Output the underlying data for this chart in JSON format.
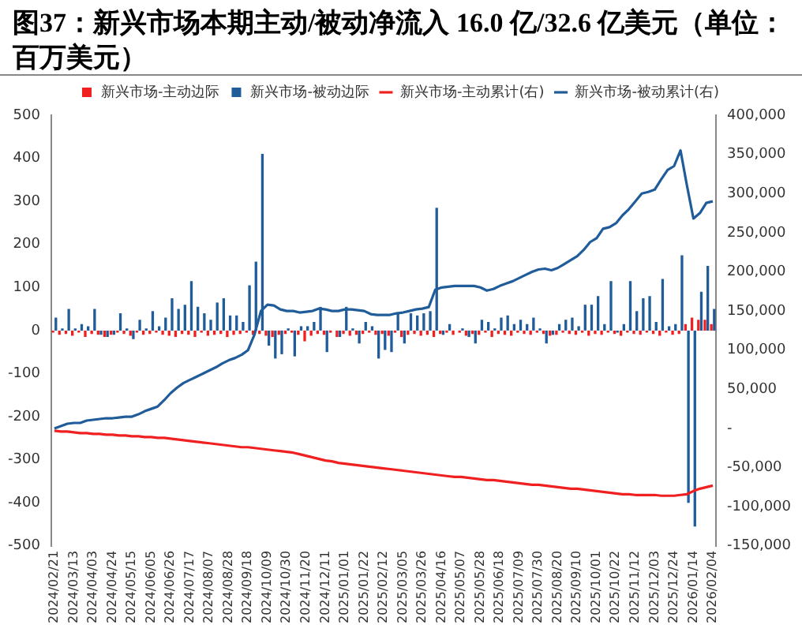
{
  "chart_data": {
    "type": "bar",
    "title": "图37：新兴市场本期主动/被动净流入 16.0 亿/32.6 亿美元（单位：百万美元）",
    "categories": [
      "2024/02/21",
      null,
      null,
      "2024/03/13",
      null,
      null,
      "2024/04/03",
      null,
      null,
      "2024/04/24",
      null,
      null,
      "2024/05/15",
      null,
      null,
      "2024/06/05",
      null,
      null,
      "2024/06/26",
      null,
      null,
      "2024/07/17",
      null,
      null,
      "2024/08/07",
      null,
      null,
      "2024/08/28",
      null,
      null,
      "2024/09/18",
      null,
      null,
      "2024/10/09",
      null,
      null,
      "2024/10/30",
      null,
      null,
      "2024/11/20",
      null,
      null,
      "2024/12/11",
      null,
      null,
      "2025/01/01",
      null,
      null,
      "2025/01/22",
      null,
      null,
      "2025/02/12",
      null,
      null,
      "2025/03/05",
      null,
      null,
      "2025/03/26",
      null,
      null,
      "2025/04/16",
      null,
      null,
      "2025/05/07",
      null,
      null,
      "2025/05/28",
      null,
      null,
      "2025/06/18",
      null,
      null,
      "2025/07/09",
      null,
      null,
      "2025/07/30",
      null,
      null,
      "2025/08/20",
      null,
      null,
      "2025/09/10",
      null,
      null,
      "2025/10/01",
      null,
      null,
      "2025/10/22",
      null,
      null,
      "2025/11/12",
      null,
      null,
      "2025/12/03",
      null,
      null,
      "2025/12/24",
      null,
      null,
      "2026/01/14",
      null,
      null,
      "2026/02/04"
    ],
    "series": [
      {
        "name": "新兴市场-主动边际",
        "color": "#f02020",
        "values": [
          -5,
          -10,
          -8,
          -12,
          -5,
          -15,
          -8,
          -10,
          -15,
          -10,
          -5,
          -8,
          -12,
          -5,
          -10,
          -8,
          -5,
          -10,
          -12,
          -15,
          -8,
          -10,
          -15,
          -5,
          -12,
          -10,
          -8,
          -15,
          -10,
          -8,
          -5,
          -10,
          -8,
          -12,
          -15,
          -10,
          -8,
          -5,
          -10,
          -25,
          -12,
          -8,
          -10,
          -5,
          -15,
          -8,
          -12,
          -10,
          -8,
          -5,
          -10,
          -8,
          -12,
          -5,
          -15,
          -10,
          -8,
          -12,
          -10,
          -15,
          -8,
          -5,
          -10,
          -5,
          -12,
          -8,
          -10,
          -5,
          -15,
          -8,
          -10,
          -12,
          -5,
          -8,
          -10,
          -5,
          -8,
          -12,
          -10,
          -5,
          -8,
          -10,
          -5,
          -12,
          -8,
          -10,
          -5,
          -8,
          -12,
          -5,
          -8,
          -10,
          -5,
          -8,
          -12,
          -5,
          -10,
          -8,
          15,
          30,
          25,
          25,
          15
        ]
      },
      {
        "name": "新兴市场-被动边际",
        "color": "#1f5c99",
        "values": [
          30,
          5,
          50,
          5,
          15,
          10,
          50,
          -10,
          -15,
          -10,
          40,
          5,
          -20,
          25,
          5,
          45,
          10,
          30,
          75,
          50,
          60,
          115,
          55,
          40,
          25,
          65,
          75,
          35,
          35,
          20,
          105,
          160,
          410,
          -35,
          -65,
          -55,
          5,
          -60,
          10,
          10,
          20,
          55,
          -50,
          0,
          -15,
          55,
          5,
          -30,
          20,
          10,
          -65,
          -45,
          -50,
          40,
          -30,
          40,
          35,
          40,
          45,
          285,
          -10,
          15,
          0,
          5,
          -15,
          -30,
          25,
          20,
          5,
          30,
          35,
          15,
          25,
          15,
          30,
          5,
          -30,
          -10,
          15,
          25,
          30,
          10,
          60,
          60,
          80,
          15,
          115,
          -5,
          15,
          115,
          45,
          75,
          80,
          20,
          120,
          10,
          15,
          175,
          -400,
          -455,
          90,
          150,
          50
        ]
      },
      {
        "name": "新兴市场-主动累计(右)",
        "type": "line",
        "axis": "y2",
        "color": "#f02020",
        "values": [
          -3000,
          -4000,
          -4000,
          -5000,
          -6000,
          -6000,
          -7000,
          -7000,
          -8000,
          -8000,
          -9000,
          -9000,
          -10000,
          -10000,
          -11000,
          -11000,
          -12000,
          -12000,
          -13000,
          -14000,
          -15000,
          -16000,
          -17000,
          -18000,
          -19000,
          -20000,
          -21000,
          -22000,
          -23000,
          -24000,
          -24000,
          -25000,
          -26000,
          -27000,
          -28000,
          -29000,
          -30000,
          -31000,
          -33000,
          -35000,
          -37000,
          -39000,
          -41000,
          -42000,
          -44000,
          -45000,
          -46000,
          -47000,
          -48000,
          -49000,
          -50000,
          -51000,
          -52000,
          -53000,
          -54000,
          -55000,
          -56000,
          -57000,
          -58000,
          -59000,
          -60000,
          -61000,
          -62000,
          -62000,
          -63000,
          -64000,
          -65000,
          -66000,
          -66000,
          -67000,
          -68000,
          -69000,
          -70000,
          -71000,
          -72000,
          -72000,
          -73000,
          -74000,
          -75000,
          -76000,
          -77000,
          -77000,
          -78000,
          -79000,
          -80000,
          -81000,
          -82000,
          -83000,
          -84000,
          -84000,
          -85000,
          -85000,
          -85000,
          -85000,
          -86000,
          -86000,
          -86000,
          -85000,
          -84000,
          -80000,
          -77000,
          -75000,
          -73000
        ]
      },
      {
        "name": "新兴市场-被动累计(右)",
        "type": "line",
        "axis": "y2",
        "color": "#1f5c99",
        "values": [
          0,
          3000,
          6000,
          7000,
          7000,
          10000,
          11000,
          12000,
          13000,
          13000,
          14000,
          15000,
          15000,
          18000,
          22000,
          25000,
          28000,
          36000,
          45000,
          52000,
          58000,
          62000,
          66000,
          70000,
          74000,
          78000,
          83000,
          87000,
          90000,
          94000,
          100000,
          120000,
          150000,
          158000,
          157000,
          152000,
          150000,
          150000,
          148000,
          149000,
          150000,
          153000,
          152000,
          150000,
          150000,
          152000,
          152000,
          151000,
          150000,
          146000,
          145000,
          145000,
          145000,
          147000,
          148000,
          150000,
          152000,
          153000,
          155000,
          177000,
          180000,
          181000,
          182000,
          182000,
          182000,
          182000,
          180000,
          176000,
          178000,
          182000,
          185000,
          188000,
          192000,
          196000,
          200000,
          203000,
          204000,
          202000,
          205000,
          210000,
          215000,
          220000,
          228000,
          238000,
          243000,
          255000,
          257000,
          262000,
          272000,
          280000,
          290000,
          300000,
          302000,
          305000,
          318000,
          330000,
          335000,
          355000,
          310000,
          268000,
          275000,
          288000,
          290000
        ]
      }
    ],
    "ylim": [
      -500,
      500
    ],
    "yticks": [
      -500,
      -400,
      -300,
      -200,
      -100,
      0,
      100,
      200,
      300,
      400,
      500
    ],
    "y2lim": [
      -150000,
      400000
    ],
    "y2ticks": [
      {
        "value": -150000,
        "label": "-150,000"
      },
      {
        "value": -100000,
        "label": "-100,000"
      },
      {
        "value": -50000,
        "label": "-50,000"
      },
      {
        "value": 0,
        "label": "-"
      },
      {
        "value": 50000,
        "label": "50,000"
      },
      {
        "value": 100000,
        "label": "100,000"
      },
      {
        "value": 150000,
        "label": "150,000"
      },
      {
        "value": 200000,
        "label": "200,000"
      },
      {
        "value": 250000,
        "label": "250,000"
      },
      {
        "value": 300000,
        "label": "300,000"
      },
      {
        "value": 350000,
        "label": "350,000"
      },
      {
        "value": 400000,
        "label": "400,000"
      }
    ],
    "legend": "top",
    "marker": "none"
  }
}
